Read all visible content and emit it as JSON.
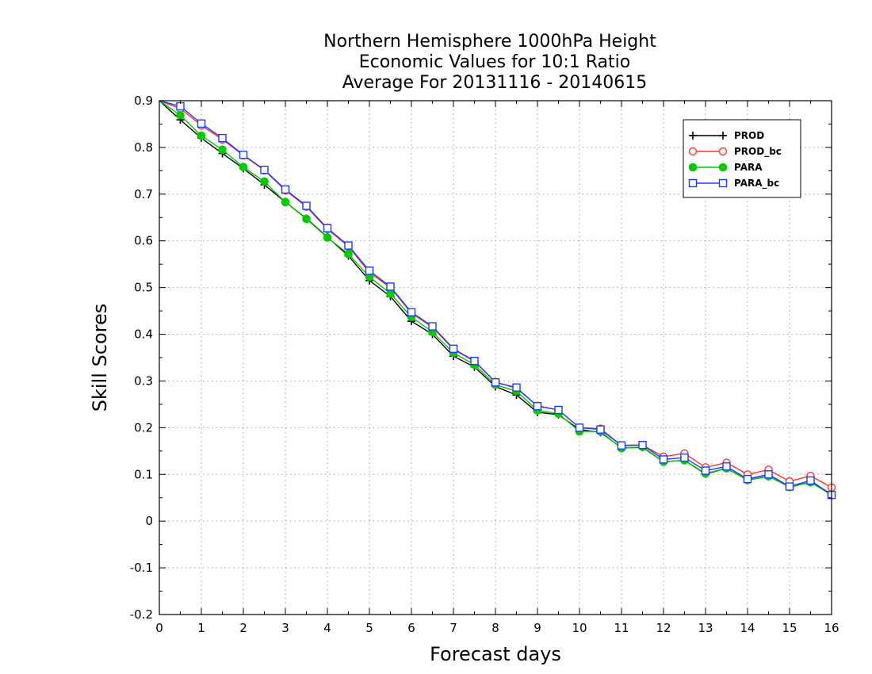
{
  "chart_data": {
    "type": "line",
    "title_lines": [
      "Northern Hemisphere 1000hPa Height",
      "Economic Values for 10:1 Ratio",
      "Average For 20131116 - 20140615"
    ],
    "xlabel": "Forecast days",
    "ylabel": "Skill Scores",
    "xlim": [
      0,
      16
    ],
    "ylim": [
      -0.2,
      0.9
    ],
    "x_ticks": [
      0,
      1,
      2,
      3,
      4,
      5,
      6,
      7,
      8,
      9,
      10,
      11,
      12,
      13,
      14,
      15,
      16
    ],
    "y_ticks": [
      -0.2,
      -0.1,
      0,
      0.1,
      0.2,
      0.3,
      0.4,
      0.5,
      0.6,
      0.7,
      0.8,
      0.9
    ],
    "y_tick_labels": [
      "-0.2",
      "-0.1",
      "0",
      "0.1",
      "0.2",
      "0.3",
      "0.4",
      "0.5",
      "0.6",
      "0.7",
      "0.8",
      "0.9"
    ],
    "grid": true,
    "legend_position": "top-right",
    "x": [
      0,
      0.5,
      1,
      1.5,
      2,
      2.5,
      3,
      3.5,
      4,
      4.5,
      5,
      5.5,
      6,
      6.5,
      7,
      7.5,
      8,
      8.5,
      9,
      9.5,
      10,
      10.5,
      11,
      11.5,
      12,
      12.5,
      13,
      13.5,
      14,
      14.5,
      15,
      15.5,
      16
    ],
    "series": [
      {
        "name": "PROD",
        "color": "#000000",
        "marker": "plus",
        "values": [
          0.925,
          0.859,
          0.82,
          0.787,
          0.755,
          0.72,
          0.683,
          0.648,
          0.608,
          0.568,
          0.515,
          0.481,
          0.428,
          0.4,
          0.353,
          0.33,
          0.288,
          0.27,
          0.233,
          0.228,
          0.196,
          0.19,
          0.157,
          0.158,
          0.127,
          0.13,
          0.101,
          0.113,
          0.088,
          0.096,
          0.073,
          0.083,
          0.058
        ]
      },
      {
        "name": "PROD_bc",
        "color": "#ff3333",
        "marker": "circle-open",
        "values": [
          0.925,
          0.883,
          0.847,
          0.817,
          0.783,
          0.751,
          0.708,
          0.673,
          0.625,
          0.588,
          0.532,
          0.5,
          0.445,
          0.415,
          0.368,
          0.342,
          0.298,
          0.284,
          0.247,
          0.238,
          0.2,
          0.198,
          0.162,
          0.163,
          0.138,
          0.145,
          0.115,
          0.125,
          0.1,
          0.11,
          0.085,
          0.097,
          0.072
        ]
      },
      {
        "name": "PARA",
        "color": "#00cc00",
        "marker": "circle-filled",
        "values": [
          0.925,
          0.869,
          0.825,
          0.795,
          0.758,
          0.727,
          0.683,
          0.647,
          0.607,
          0.572,
          0.523,
          0.487,
          0.437,
          0.405,
          0.36,
          0.335,
          0.292,
          0.278,
          0.237,
          0.23,
          0.192,
          0.192,
          0.156,
          0.159,
          0.127,
          0.13,
          0.102,
          0.113,
          0.088,
          0.096,
          0.073,
          0.083,
          0.056
        ]
      },
      {
        "name": "PARA_bc",
        "color": "#1a3cff",
        "marker": "square-open",
        "values": [
          0.925,
          0.888,
          0.851,
          0.82,
          0.784,
          0.752,
          0.71,
          0.675,
          0.627,
          0.59,
          0.536,
          0.502,
          0.447,
          0.417,
          0.369,
          0.343,
          0.297,
          0.286,
          0.246,
          0.238,
          0.2,
          0.196,
          0.162,
          0.163,
          0.132,
          0.136,
          0.108,
          0.117,
          0.09,
          0.1,
          0.074,
          0.087,
          0.056
        ]
      }
    ]
  }
}
